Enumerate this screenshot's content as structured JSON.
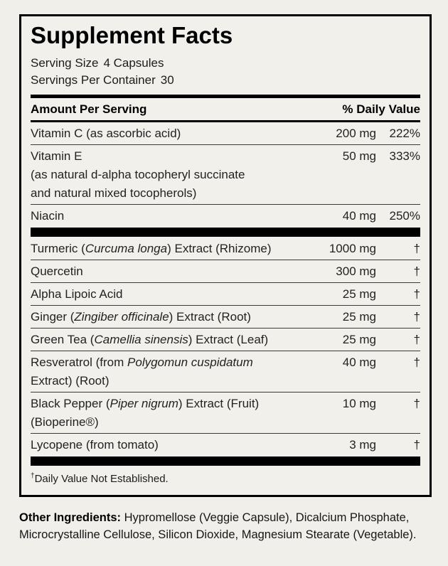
{
  "colors": {
    "background": "#f0efe9",
    "panel_border": "#000000",
    "text": "#111111",
    "divider_bar": "#000000"
  },
  "label": {
    "title": "Supplement Facts",
    "serving_size_label": "Serving Size",
    "serving_size_value": "4 Capsules",
    "servings_per_container_label": "Servings Per Container",
    "servings_per_container_value": "30",
    "header": {
      "amount_label": "Amount Per Serving",
      "daily_value_label": "% Daily Value"
    },
    "rows": [
      {
        "type": "ingredient",
        "name_lines": [
          [
            {
              "t": "Vitamin C (as ascorbic acid)",
              "i": false
            }
          ]
        ],
        "amount": "200 mg",
        "daily_value": "222%",
        "separator_after": true
      },
      {
        "type": "ingredient",
        "name_lines": [
          [
            {
              "t": "Vitamin E",
              "i": false
            }
          ],
          [
            {
              "t": "(as natural d-alpha tocopheryl succinate",
              "i": false
            }
          ],
          [
            {
              "t": "and natural mixed tocopherols)",
              "i": false
            }
          ]
        ],
        "amount": "50 mg",
        "daily_value": "333%",
        "separator_after": true
      },
      {
        "type": "ingredient",
        "name_lines": [
          [
            {
              "t": "Niacin",
              "i": false
            }
          ]
        ],
        "amount": "40 mg",
        "daily_value": "250%",
        "separator_after": false
      },
      {
        "type": "bar"
      },
      {
        "type": "ingredient",
        "name_lines": [
          [
            {
              "t": "Turmeric (",
              "i": false
            },
            {
              "t": "Curcuma longa",
              "i": true
            },
            {
              "t": ") Extract (Rhizome)",
              "i": false
            }
          ]
        ],
        "amount": "1000 mg",
        "daily_value": "†",
        "separator_after": true
      },
      {
        "type": "ingredient",
        "name_lines": [
          [
            {
              "t": "Quercetin",
              "i": false
            }
          ]
        ],
        "amount": "300 mg",
        "daily_value": "†",
        "separator_after": true
      },
      {
        "type": "ingredient",
        "name_lines": [
          [
            {
              "t": "Alpha Lipoic Acid",
              "i": false
            }
          ]
        ],
        "amount": "25 mg",
        "daily_value": "†",
        "separator_after": true
      },
      {
        "type": "ingredient",
        "name_lines": [
          [
            {
              "t": "Ginger (",
              "i": false
            },
            {
              "t": "Zingiber officinale",
              "i": true
            },
            {
              "t": ") Extract (Root)",
              "i": false
            }
          ]
        ],
        "amount": "25 mg",
        "daily_value": "†",
        "separator_after": true
      },
      {
        "type": "ingredient",
        "name_lines": [
          [
            {
              "t": "Green Tea (",
              "i": false
            },
            {
              "t": "Camellia sinensis",
              "i": true
            },
            {
              "t": ") Extract (Leaf)",
              "i": false
            }
          ]
        ],
        "amount": "25 mg",
        "daily_value": "†",
        "separator_after": true
      },
      {
        "type": "ingredient",
        "name_lines": [
          [
            {
              "t": "Resveratrol (from ",
              "i": false
            },
            {
              "t": "Polygomun cuspidatum",
              "i": true
            }
          ],
          [
            {
              "t": "Extract) (Root)",
              "i": false
            }
          ]
        ],
        "amount": "40 mg",
        "daily_value": "†",
        "separator_after": true
      },
      {
        "type": "ingredient",
        "name_lines": [
          [
            {
              "t": "Black Pepper (",
              "i": false
            },
            {
              "t": "Piper nigrum",
              "i": true
            },
            {
              "t": ") Extract (Fruit)",
              "i": false
            }
          ],
          [
            {
              "t": "(Bioperine®)",
              "i": false
            }
          ]
        ],
        "amount": "10 mg",
        "daily_value": "†",
        "separator_after": true
      },
      {
        "type": "ingredient",
        "name_lines": [
          [
            {
              "t": "Lycopene (from tomato)",
              "i": false
            }
          ]
        ],
        "amount": "3 mg",
        "daily_value": "†",
        "separator_after": false
      },
      {
        "type": "bar"
      }
    ],
    "footnote": {
      "dagger": "†",
      "text": "Daily Value Not Established."
    }
  },
  "other_ingredients": {
    "label": "Other Ingredients:",
    "text": " Hypromellose (Veggie Capsule), Dicalcium Phosphate, Microcrystalline Cellulose, Silicon Dioxide, Magnesium Stearate (Vegetable)."
  }
}
